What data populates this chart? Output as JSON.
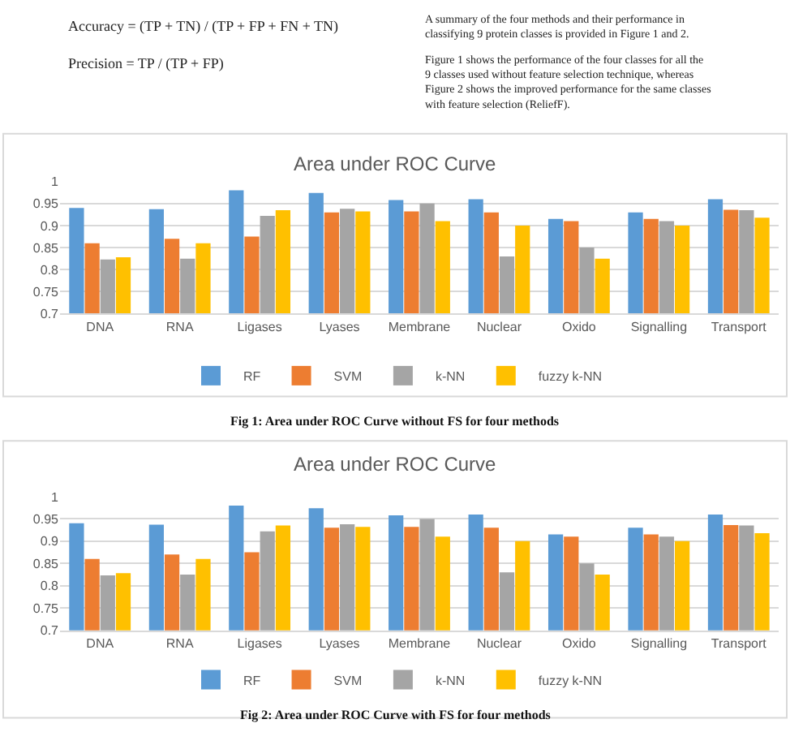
{
  "chart_data": [
    {
      "type": "other",
      "annotations": [
        "Accuracy = (TP + TN) / (TP + FP + FN + TN)",
        "Precision = TP / (TP + FP)",
        "A summary of the four methods and their performance in classifying 9 protein classes is provided in Figure 1 and 2.",
        "Figure 1 shows the performance of the four classes for all the 9 classes used without feature selection technique, whereas Figure 2 shows the improved performance for the same classes with feature selection (ReliefF)."
      ]
    },
    {
      "type": "bar",
      "title": "Area under ROC Curve",
      "categories": [
        "DNA",
        "RNA",
        "Ligases",
        "Lyases",
        "Membrane",
        "Nuclear",
        "Oxido",
        "Signalling",
        "Transport"
      ],
      "series": [
        {
          "name": "RF",
          "color": "#5b9bd5",
          "values": [
            0.94,
            0.937,
            0.98,
            0.974,
            0.958,
            0.96,
            0.915,
            0.93,
            0.96
          ]
        },
        {
          "name": "SVM",
          "color": "#ed7d31",
          "values": [
            0.86,
            0.87,
            0.875,
            0.93,
            0.932,
            0.93,
            0.91,
            0.915,
            0.936
          ]
        },
        {
          "name": "k-NN",
          "color": "#a5a5a5",
          "values": [
            0.823,
            0.825,
            0.922,
            0.938,
            0.95,
            0.83,
            0.85,
            0.91,
            0.935
          ]
        },
        {
          "name": "fuzzy k-NN",
          "color": "#ffc000",
          "values": [
            0.828,
            0.86,
            0.935,
            0.932,
            0.91,
            0.9,
            0.825,
            0.9,
            0.918
          ]
        }
      ],
      "ylim": [
        0.7,
        1
      ],
      "yticks": [
        0.7,
        0.75,
        0.8,
        0.85,
        0.9,
        0.95,
        1
      ],
      "grid": "y",
      "legend": "bottom",
      "annotations": [
        "Fig 1: Area under ROC Curve without FS for four methods"
      ]
    },
    {
      "type": "bar",
      "title": "Area under ROC Curve",
      "categories": [
        "DNA",
        "RNA",
        "Ligases",
        "Lyases",
        "Membrane",
        "Nuclear",
        "Oxido",
        "Signalling",
        "Transport"
      ],
      "series": [
        {
          "name": "RF",
          "color": "#5b9bd5",
          "values": [
            0.94,
            0.937,
            0.98,
            0.974,
            0.958,
            0.96,
            0.915,
            0.93,
            0.96
          ]
        },
        {
          "name": "SVM",
          "color": "#ed7d31",
          "values": [
            0.86,
            0.87,
            0.875,
            0.93,
            0.932,
            0.93,
            0.91,
            0.915,
            0.936
          ]
        },
        {
          "name": "k-NN",
          "color": "#a5a5a5",
          "values": [
            0.823,
            0.825,
            0.922,
            0.938,
            0.95,
            0.83,
            0.85,
            0.91,
            0.935
          ]
        },
        {
          "name": "fuzzy k-NN",
          "color": "#ffc000",
          "values": [
            0.828,
            0.86,
            0.935,
            0.932,
            0.91,
            0.9,
            0.825,
            0.9,
            0.918
          ]
        }
      ],
      "ylim": [
        0.7,
        1
      ],
      "yticks": [
        0.7,
        0.75,
        0.8,
        0.85,
        0.9,
        0.95,
        1
      ],
      "grid": "y",
      "legend": "bottom",
      "annotations": [
        "Fig 2: Area under ROC Curve with FS for four methods"
      ]
    }
  ]
}
